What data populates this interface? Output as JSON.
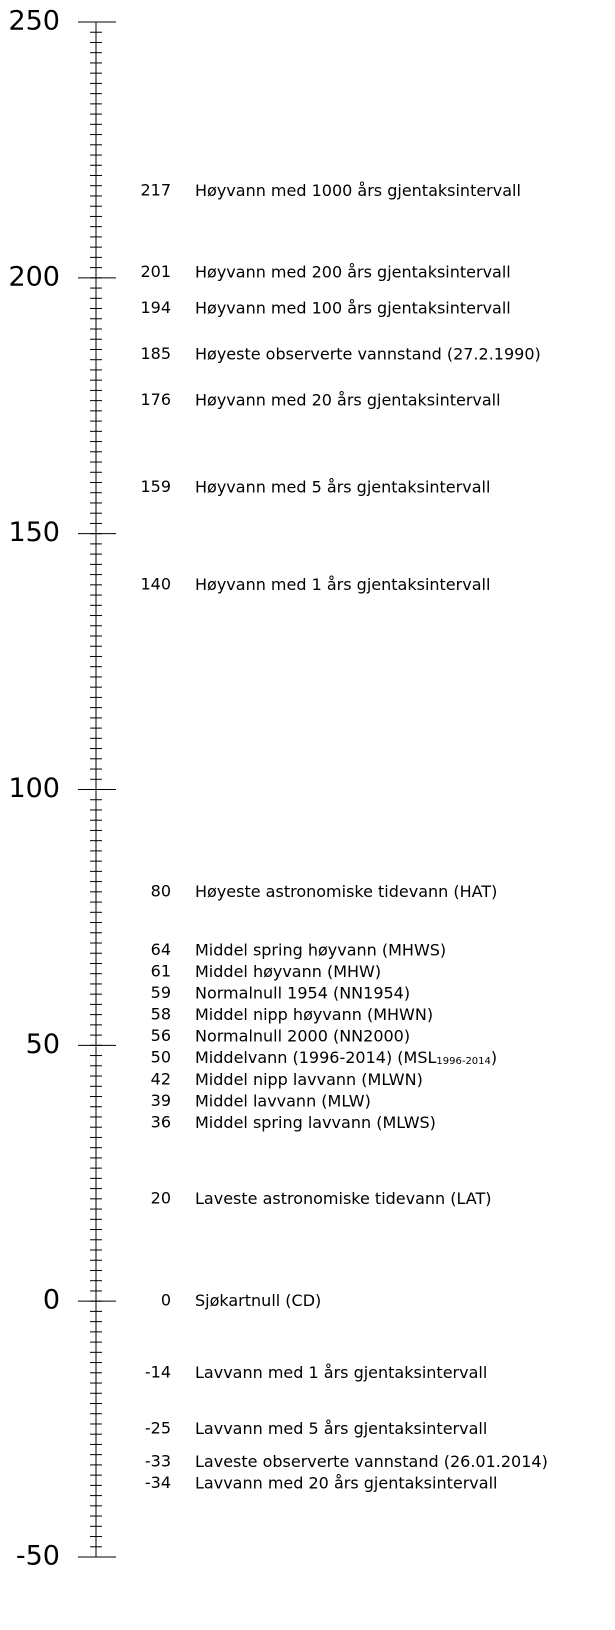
{
  "chart_data": {
    "type": "level-scale",
    "ylim": [
      -50,
      250
    ],
    "yticks": [
      250,
      200,
      150,
      100,
      50,
      0,
      -50
    ],
    "minor_yticks": [
      -50,
      -48,
      -46,
      -44,
      -42,
      -40,
      -38,
      -36,
      -34,
      -32,
      -30,
      -28,
      -26,
      -24,
      -22,
      -20,
      -18,
      -16,
      -14,
      -12,
      -10,
      -8,
      -6,
      -4,
      -2,
      0,
      2,
      4,
      6,
      8,
      10,
      12,
      14,
      16,
      18,
      20,
      22,
      24,
      26,
      28,
      30,
      32,
      34,
      36,
      38,
      40,
      42,
      44,
      46,
      48,
      50,
      52,
      54,
      56,
      58,
      60,
      62,
      64,
      66,
      68,
      70,
      72,
      74,
      76,
      78,
      80,
      82,
      84,
      86,
      88,
      90,
      92,
      94,
      96,
      98,
      100,
      102,
      104,
      106,
      108,
      110,
      112,
      114,
      116,
      118,
      120,
      122,
      124,
      126,
      128,
      130,
      132,
      134,
      136,
      138,
      140,
      142,
      144,
      146,
      148,
      150,
      152,
      154,
      156,
      158,
      160,
      162,
      164,
      166,
      168,
      170,
      172,
      174,
      176,
      178,
      180,
      182,
      184,
      186,
      188,
      190,
      192,
      194,
      196,
      198,
      200,
      202,
      204,
      206,
      208,
      210,
      212,
      214,
      216,
      218,
      220,
      222,
      224,
      226,
      228,
      230,
      232,
      234,
      236,
      238,
      240,
      242,
      244,
      246,
      248,
      250
    ],
    "levels": [
      {
        "value": 217,
        "label": "Høyvann med 1000 års gjentaksintervall"
      },
      {
        "value": 201,
        "label": "Høyvann med 200 års gjentaksintervall"
      },
      {
        "value": 194,
        "label": "Høyvann med 100 års gjentaksintervall"
      },
      {
        "value": 185,
        "label": "Høyeste observerte vannstand (27.2.1990)"
      },
      {
        "value": 176,
        "label": "Høyvann med 20 års gjentaksintervall"
      },
      {
        "value": 159,
        "label": "Høyvann med 5 års gjentaksintervall"
      },
      {
        "value": 140,
        "label": "Høyvann med 1 års gjentaksintervall"
      },
      {
        "value": 80,
        "label": "Høyeste astronomiske tidevann (HAT)"
      },
      {
        "value": 64,
        "label": "Middel spring høyvann (MHWS)"
      },
      {
        "value": 61,
        "label": "Middel høyvann (MHW)"
      },
      {
        "value": 59,
        "label": "Normalnull 1954 (NN1954)"
      },
      {
        "value": 58,
        "label": "Middel nipp høyvann (MHWN)"
      },
      {
        "value": 56,
        "label": "Normalnull 2000 (NN2000)"
      },
      {
        "value": 50,
        "label": "Middelvann (1996-2014) (MSL",
        "label_sub": "1996-2014",
        "label_end": ")"
      },
      {
        "value": 42,
        "label": "Middel nipp lavvann (MLWN)"
      },
      {
        "value": 39,
        "label": "Middel lavvann (MLW)"
      },
      {
        "value": 36,
        "label": "Middel spring lavvann (MLWS)"
      },
      {
        "value": 20,
        "label": "Laveste astronomiske tidevann (LAT)"
      },
      {
        "value": 0,
        "label": "Sjøkartnull (CD)"
      },
      {
        "value": -14,
        "label": "Lavvann med 1 års gjentaksintervall"
      },
      {
        "value": -25,
        "label": "Lavvann med 5 års gjentaksintervall"
      },
      {
        "value": -33,
        "label": "Laveste observerte vannstand (26.01.2014)"
      },
      {
        "value": -34,
        "label": "Lavvann med 20 års gjentaksintervall"
      }
    ]
  }
}
